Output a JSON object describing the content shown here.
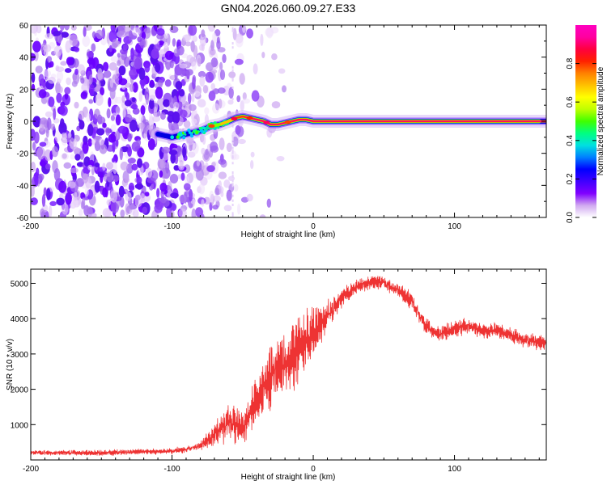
{
  "figure_title": "GN04.2026.060.09.27.E33",
  "chart_data": [
    {
      "type": "heatmap",
      "title": "GN04.2026.060.09.27.E33",
      "xlabel": "Height of straight line (km)",
      "ylabel": "Frequency (Hz)",
      "xlim": [
        -200,
        165
      ],
      "ylim": [
        -60,
        60
      ],
      "xticks": [
        -200,
        -100,
        0,
        100
      ],
      "yticks": [
        -60,
        -40,
        -20,
        0,
        20,
        40,
        60
      ],
      "xtick_labels": [
        "-200",
        "-100",
        "0",
        "100"
      ],
      "ytick_labels": [
        "-60",
        "-40",
        "-20",
        "0",
        "20",
        "40",
        "60"
      ],
      "colorbar": {
        "label": "Normalized spectral amplitude",
        "range": [
          0,
          1
        ],
        "ticks": [
          0.0,
          0.2,
          0.4,
          0.6,
          0.8
        ],
        "tick_labels": [
          "0.0",
          "0.2",
          "0.4",
          "0.6",
          "0.8"
        ],
        "colors": [
          "#ffffff",
          "#d0a8f0",
          "#8000ff",
          "#4000ff",
          "#0000ff",
          "#0080ff",
          "#00e0e0",
          "#00ff80",
          "#40ff00",
          "#c0ff00",
          "#ffff00",
          "#ffc000",
          "#ff8000",
          "#ff2000",
          "#ff0040",
          "#ff00a0",
          "#ff00c0"
        ]
      },
      "signal_track": {
        "x": [
          -110,
          -100,
          -90,
          -80,
          -72,
          -66,
          -60,
          -55,
          -50,
          -45,
          -40,
          -35,
          -30,
          -25,
          -20,
          -15,
          -10,
          -5,
          0,
          50,
          100,
          165
        ],
        "y": [
          -8,
          -10,
          -8,
          -6,
          -3,
          -2,
          0,
          2,
          3,
          2,
          1,
          0,
          -2,
          -2,
          -1,
          0,
          1,
          1,
          0,
          0,
          0,
          0
        ]
      },
      "noise_region_x": [
        -200,
        -60
      ]
    },
    {
      "type": "line",
      "title": "",
      "xlabel": "Height of straight line (km)",
      "ylabel": "SNR (10 * v/v)",
      "xlim": [
        -200,
        165
      ],
      "ylim": [
        0,
        5400
      ],
      "xticks": [
        -200,
        -100,
        0,
        100
      ],
      "yticks": [
        1000,
        2000,
        3000,
        4000,
        5000
      ],
      "xtick_labels": [
        "-200",
        "-100",
        "0",
        "100"
      ],
      "ytick_labels": [
        "1000",
        "2000",
        "3000",
        "4000",
        "5000"
      ],
      "series": [
        {
          "name": "SNR",
          "color": "#ee3333",
          "x": [
            -200,
            -150,
            -100,
            -90,
            -80,
            -70,
            -65,
            -60,
            -55,
            -50,
            -45,
            -40,
            -35,
            -30,
            -25,
            -20,
            -15,
            -10,
            -5,
            0,
            5,
            10,
            15,
            20,
            30,
            40,
            45,
            50,
            60,
            70,
            75,
            80,
            85,
            90,
            100,
            110,
            120,
            130,
            140,
            150,
            160,
            165
          ],
          "values": [
            200,
            200,
            250,
            300,
            400,
            700,
            900,
            1100,
            1000,
            900,
            1300,
            1700,
            2000,
            2300,
            2600,
            2700,
            3000,
            3200,
            3400,
            3600,
            3800,
            4100,
            4300,
            4600,
            4900,
            5000,
            5050,
            5000,
            4800,
            4500,
            4100,
            3800,
            3600,
            3550,
            3700,
            3800,
            3650,
            3700,
            3500,
            3400,
            3300,
            3300
          ],
          "noise_amplitude": [
            100,
            110,
            120,
            130,
            150,
            500,
            700,
            800,
            800,
            700,
            800,
            1000,
            1100,
            1200,
            1300,
            1200,
            1400,
            1400,
            1300,
            1200,
            800,
            600,
            500,
            400,
            300,
            300,
            300,
            300,
            300,
            350,
            350,
            350,
            350,
            350,
            350,
            350,
            300,
            300,
            350,
            350,
            300,
            300
          ]
        }
      ]
    }
  ]
}
